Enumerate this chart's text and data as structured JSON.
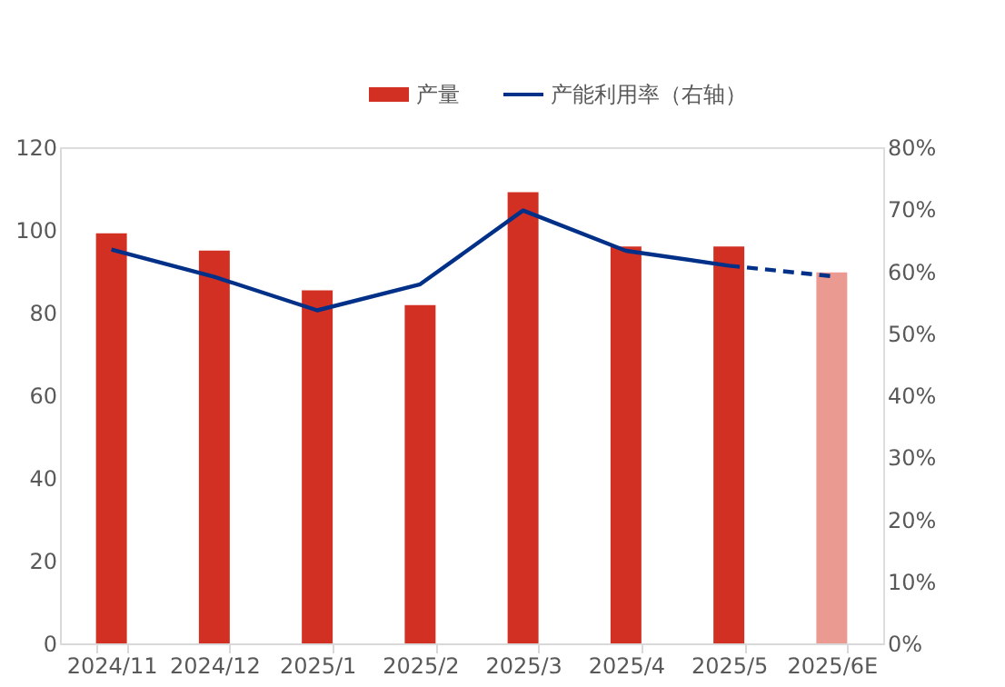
{
  "chart_data": {
    "type": "bar",
    "categories": [
      "2024/11",
      "2024/12",
      "2025/1",
      "2025/2",
      "2025/3",
      "2025/4",
      "2025/5",
      "2025/6E"
    ],
    "series": [
      {
        "name": "产量",
        "color": "#d33024",
        "colors": [
          "#d33024",
          "#d33024",
          "#d33024",
          "#d33024",
          "#d33024",
          "#d33024",
          "#d33024",
          "#eb9a92"
        ],
        "values": [
          99.2,
          95,
          85.4,
          81.8,
          109.1,
          96,
          96,
          89.7
        ]
      },
      {
        "name": "产能利用率（右轴）",
        "type": "line",
        "axis": "y2",
        "color": "#003087",
        "line_style": "solid",
        "values": [
          63.5,
          59.1,
          53.7,
          57.9,
          69.8,
          63.3,
          60.9,
          null
        ]
      },
      {
        "type": "line",
        "axis": "y2",
        "color": "#003087",
        "line_style": "dashed",
        "values": [
          null,
          null,
          null,
          null,
          null,
          null,
          60.9,
          59.2
        ]
      }
    ],
    "ylim": [
      0,
      120
    ],
    "yticks": [
      0,
      20,
      40,
      60,
      80,
      100,
      120
    ],
    "y2lim": [
      0,
      80
    ],
    "y2ticks": [
      {
        "value": 0,
        "label": "0%"
      },
      {
        "value": 10,
        "label": "10%"
      },
      {
        "value": 20,
        "label": "20%"
      },
      {
        "value": 30,
        "label": "30%"
      },
      {
        "value": 40,
        "label": "40%"
      },
      {
        "value": 50,
        "label": "50%"
      },
      {
        "value": 60,
        "label": "60%"
      },
      {
        "value": 70,
        "label": "70%"
      },
      {
        "value": 80,
        "label": "80%"
      }
    ],
    "grid": false,
    "legend": "top"
  }
}
